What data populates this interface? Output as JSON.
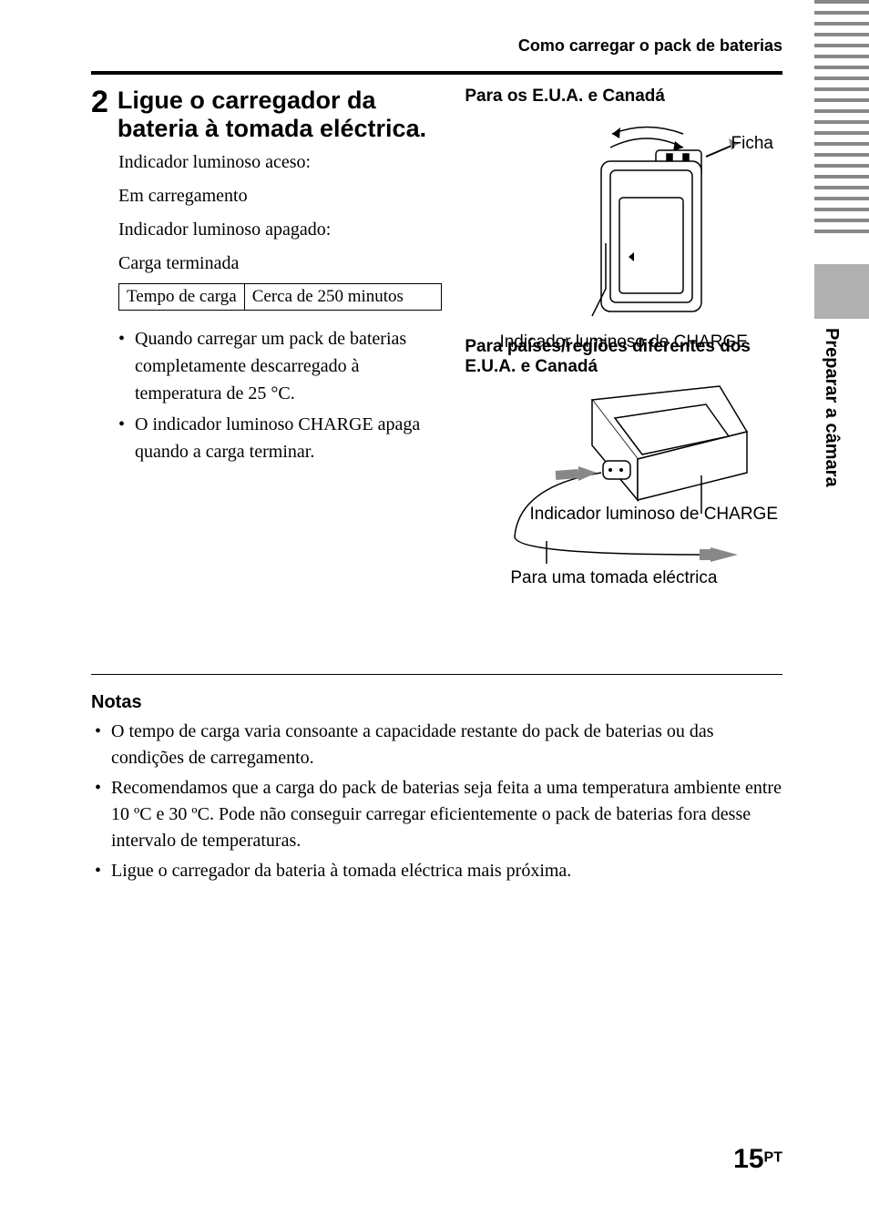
{
  "running_head": "Como carregar o pack de baterias",
  "side_label": "Preparar a câmara",
  "step": {
    "number": "2",
    "title": "Ligue o carregador da bateria à tomada eléctrica."
  },
  "indicator_on": "Indicador luminoso aceso:",
  "charging": "Em carregamento",
  "indicator_off": "Indicador luminoso apagado:",
  "charge_done": "Carga terminada",
  "table": {
    "label": "Tempo de carga",
    "value": "Cerca de 250 minutos"
  },
  "left_bullets": [
    "Quando carregar um pack de baterias completamente descarregado à temperatura de 25 °C.",
    "O indicador luminoso CHARGE apaga quando a carga terminar."
  ],
  "right": {
    "h1": "Para os E.U.A. e Canadá",
    "ficha": "Ficha",
    "charge1": "Indicador luminoso de CHARGE",
    "h2": "Para países/regiões diferentes dos E.U.A. e Canadá",
    "charge2": "Indicador luminoso de CHARGE",
    "outlet": "Para uma tomada eléctrica"
  },
  "notes_h": "Notas",
  "notes": [
    "O tempo de carga varia consoante a capacidade restante do pack de baterias ou das condições de carregamento.",
    "Recomendamos que a carga do pack de baterias seja feita a uma temperatura ambiente entre 10 ºC e 30 ºC. Pode não conseguir carregar eficientemente o pack de baterias fora desse intervalo de temperaturas.",
    "Ligue o carregador da bateria à tomada eléctrica mais próxima."
  ],
  "page_number": "15",
  "page_lang": "PT",
  "side_bar_count": 22
}
